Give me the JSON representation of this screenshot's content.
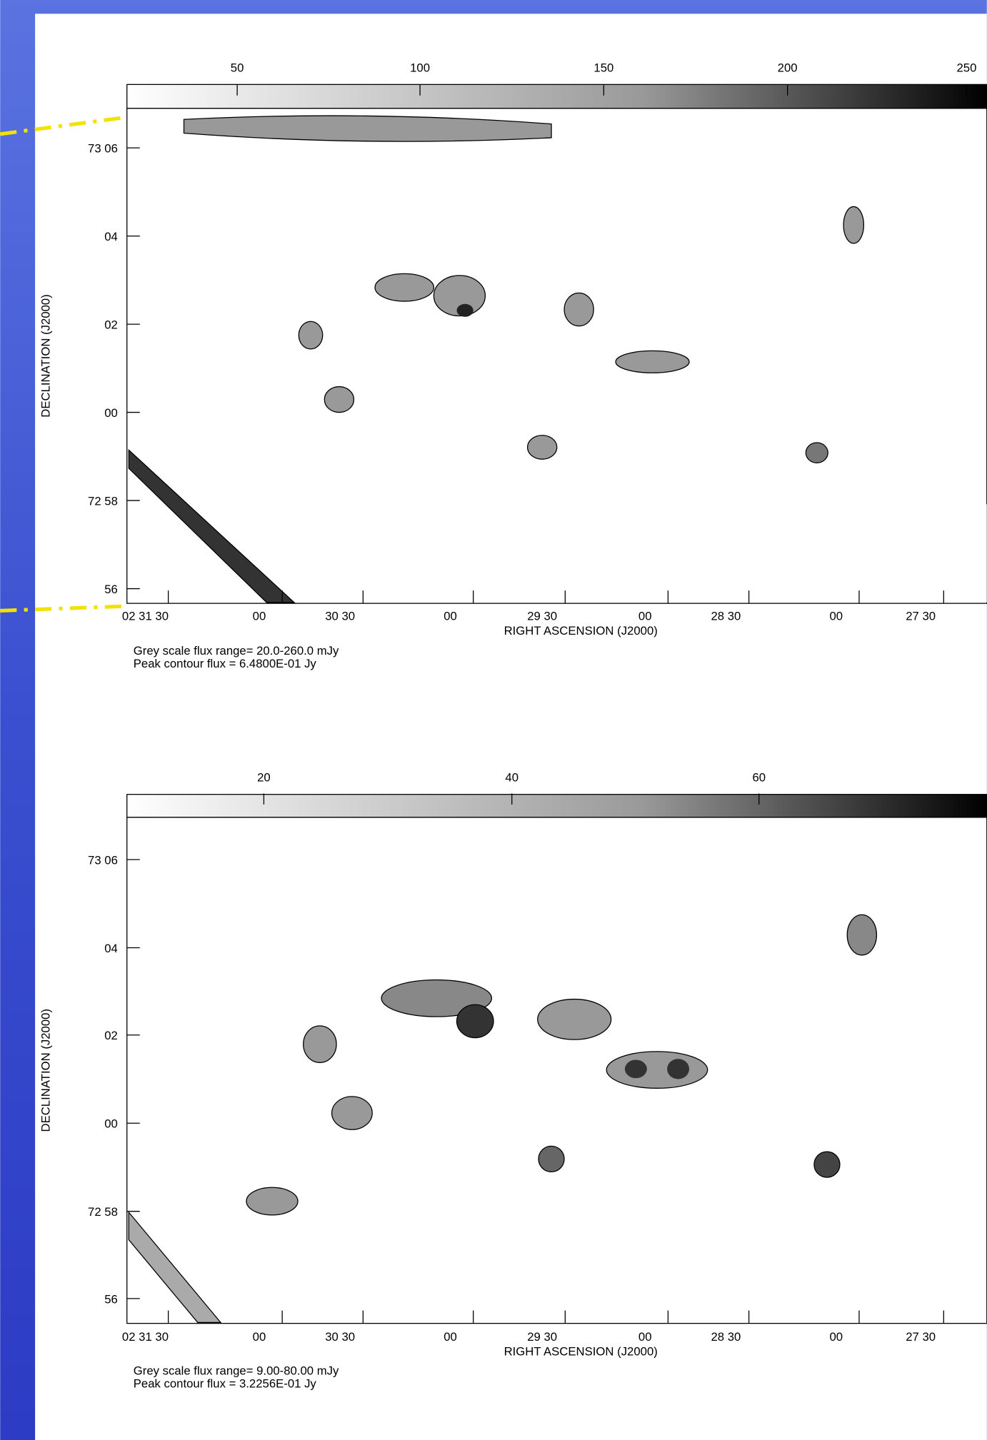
{
  "panels": [
    {
      "colorbar_ticks": [
        "50",
        "100",
        "150",
        "200",
        "250"
      ],
      "y_label": "DECLINATION (J2000)",
      "y_ticks": [
        "73 06",
        "04",
        "02",
        "00",
        "72 58",
        "56"
      ],
      "x_ticks": [
        "02 31 30",
        "00",
        "30 30",
        "00",
        "29 30",
        "00",
        "28 30",
        "00",
        "27 30"
      ],
      "x_label": "RIGHT ASCENSION (J2000)",
      "notes": [
        "Grey scale flux range= 20.0-260.0 mJy",
        "Peak contour flux =  6.4800E-01 Jy"
      ]
    },
    {
      "colorbar_ticks": [
        "20",
        "40",
        "60"
      ],
      "y_label": "DECLINATION (J2000)",
      "y_ticks": [
        "73 06",
        "04",
        "02",
        "00",
        "72 58",
        "56"
      ],
      "x_ticks": [
        "02 31 30",
        "00",
        "30 30",
        "00",
        "29 30",
        "00",
        "28 30",
        "00",
        "27 30"
      ],
      "x_label": "RIGHT ASCENSION (J2000)",
      "notes": [
        "Grey scale flux range= 9.00-80.00 mJy",
        "Peak contour flux =  3.2256E-01 Jy"
      ]
    }
  ]
}
